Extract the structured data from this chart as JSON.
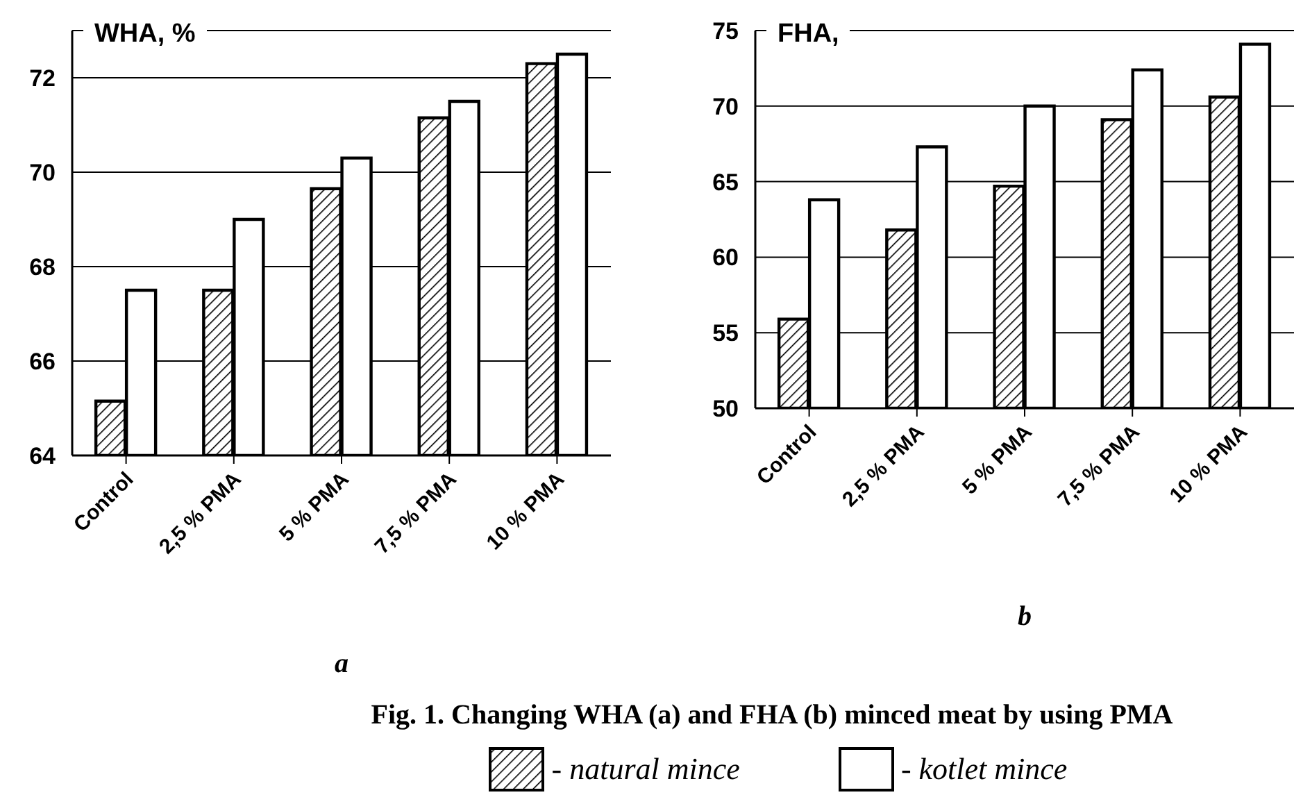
{
  "chart_data": [
    {
      "type": "bar",
      "title": "WHA, %",
      "xlabel": "a",
      "categories": [
        "Control",
        "2,5 % PMA",
        "5 % PMA",
        "7,5 % PMA",
        "10 % PMA"
      ],
      "series": [
        {
          "color": "#000000",
          "values": [
            65.15,
            67.5,
            69.65,
            71.15,
            72.3
          ]
        },
        {
          "color": "#ffffff",
          "values": [
            67.5,
            69.0,
            70.3,
            71.5,
            72.5
          ]
        }
      ],
      "ylim": [
        64,
        73
      ],
      "yticks": [
        64,
        66,
        68,
        70,
        72
      ],
      "grid": "y"
    },
    {
      "type": "bar",
      "title": "FHA,",
      "xlabel": "b",
      "categories": [
        "Control",
        "2,5 % PMA",
        "5 % PMA",
        "7,5 % PMA",
        "10 % PMA"
      ],
      "series": [
        {
          "name": "- natural mince",
          "color": "#000000",
          "values": [
            55.9,
            61.8,
            64.7,
            69.1,
            70.6
          ]
        },
        {
          "name": "- kotlet mince",
          "color": "#ffffff",
          "values": [
            63.8,
            67.3,
            70.0,
            72.4,
            74.1
          ]
        }
      ],
      "ylim": [
        50,
        75
      ],
      "yticks": [
        50,
        55,
        60,
        65,
        70,
        75
      ],
      "grid": "y",
      "legend": "bottom",
      "annotations": [
        "Fig. 1. Changing WHA (a) and FHA (b) minced meat by using PMA"
      ]
    }
  ]
}
